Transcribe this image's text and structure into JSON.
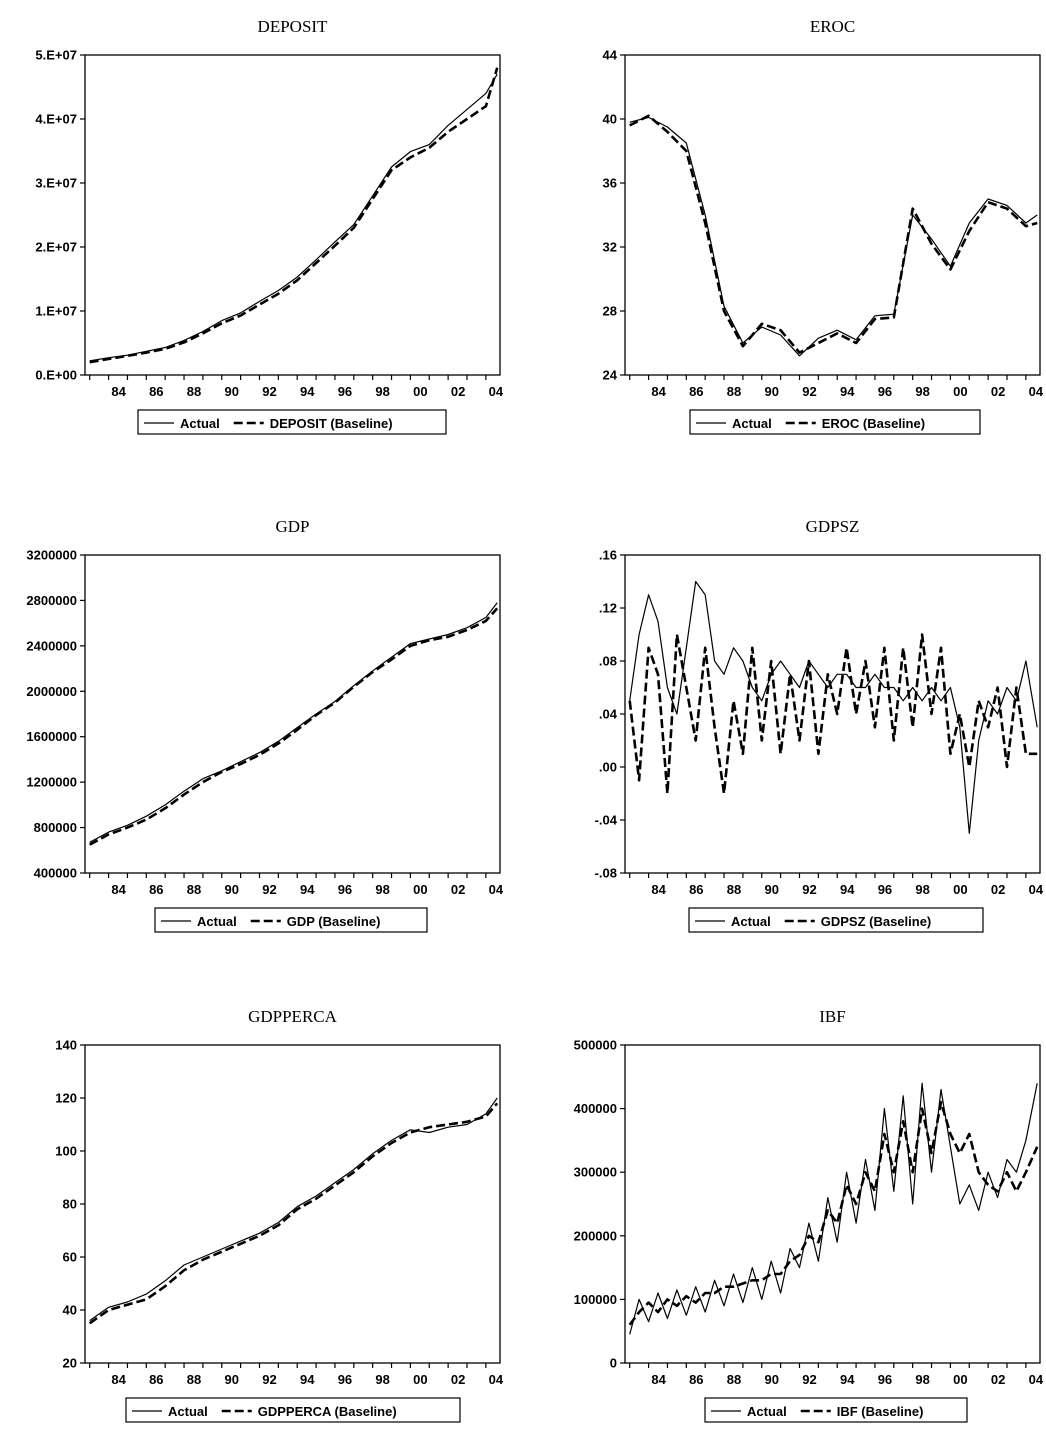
{
  "chart_data": [
    {
      "type": "line",
      "title": "DEPOSIT",
      "x_ticks": [
        "84",
        "86",
        "88",
        "90",
        "92",
        "94",
        "96",
        "98",
        "00",
        "02",
        "04"
      ],
      "x_range": [
        1982.75,
        2004.75
      ],
      "ylim": [
        0,
        50000000
      ],
      "y_ticks": [
        {
          "v": 0,
          "label": "0.E+00"
        },
        {
          "v": 10000000,
          "label": "1.E+07"
        },
        {
          "v": 20000000,
          "label": "2.E+07"
        },
        {
          "v": 30000000,
          "label": "3.E+07"
        },
        {
          "v": 40000000,
          "label": "4.E+07"
        },
        {
          "v": 50000000,
          "label": "5.E+07"
        }
      ],
      "x": [
        1983,
        1984,
        1985,
        1986,
        1987,
        1988,
        1989,
        1990,
        1991,
        1992,
        1993,
        1994,
        1995,
        1996,
        1997,
        1998,
        1999,
        2000,
        2001,
        2002,
        2003,
        2004,
        2004.6
      ],
      "series": [
        {
          "name": "Actual",
          "style": "solid",
          "values": [
            2200000,
            2700000,
            3100000,
            3700000,
            4300000,
            5400000,
            6800000,
            8500000,
            9700000,
            11500000,
            13200000,
            15300000,
            18000000,
            20800000,
            23500000,
            28000000,
            32500000,
            34900000,
            36000000,
            39000000,
            41500000,
            44000000,
            47000000
          ]
        },
        {
          "name": "DEPOSIT (Baseline)",
          "style": "dash",
          "values": [
            2000000,
            2500000,
            3000000,
            3500000,
            4100000,
            5100000,
            6500000,
            8100000,
            9300000,
            11000000,
            12700000,
            14800000,
            17500000,
            20200000,
            23000000,
            27500000,
            32000000,
            34000000,
            35500000,
            38000000,
            40000000,
            42000000,
            48000000
          ]
        }
      ],
      "legend": [
        "Actual",
        "DEPOSIT (Baseline)"
      ]
    },
    {
      "type": "line",
      "title": "EROC",
      "x_ticks": [
        "84",
        "86",
        "88",
        "90",
        "92",
        "94",
        "96",
        "98",
        "00",
        "02",
        "04"
      ],
      "x_range": [
        1982.75,
        2004.75
      ],
      "ylim": [
        24,
        44
      ],
      "y_ticks": [
        {
          "v": 24,
          "label": "24"
        },
        {
          "v": 28,
          "label": "28"
        },
        {
          "v": 32,
          "label": "32"
        },
        {
          "v": 36,
          "label": "36"
        },
        {
          "v": 40,
          "label": "40"
        },
        {
          "v": 44,
          "label": "44"
        }
      ],
      "x": [
        1983,
        1984,
        1985,
        1986,
        1987,
        1988,
        1989,
        1990,
        1991,
        1992,
        1993,
        1994,
        1995,
        1996,
        1997,
        1998,
        1999,
        2000,
        2001,
        2002,
        2003,
        2004,
        2004.6
      ],
      "series": [
        {
          "name": "Actual",
          "style": "solid",
          "values": [
            39.8,
            40.1,
            39.5,
            38.5,
            34.0,
            28.3,
            26.0,
            27.0,
            26.5,
            25.2,
            26.3,
            26.8,
            26.2,
            27.7,
            27.8,
            34.0,
            32.5,
            30.8,
            33.5,
            35.0,
            34.6,
            33.5,
            34.0
          ]
        },
        {
          "name": "EROC (Baseline)",
          "style": "dash",
          "values": [
            39.6,
            40.2,
            39.2,
            38.0,
            33.5,
            28.0,
            25.8,
            27.2,
            26.8,
            25.4,
            26.0,
            26.6,
            26.0,
            27.5,
            27.6,
            34.4,
            32.2,
            30.6,
            33.0,
            34.8,
            34.4,
            33.3,
            33.5
          ]
        }
      ],
      "legend": [
        "Actual",
        "EROC (Baseline)"
      ]
    },
    {
      "type": "line",
      "title": "GDP",
      "x_ticks": [
        "84",
        "86",
        "88",
        "90",
        "92",
        "94",
        "96",
        "98",
        "00",
        "02",
        "04"
      ],
      "x_range": [
        1982.75,
        2004.75
      ],
      "ylim": [
        400000,
        3200000
      ],
      "y_ticks": [
        {
          "v": 400000,
          "label": "400000"
        },
        {
          "v": 800000,
          "label": "800000"
        },
        {
          "v": 1200000,
          "label": "1200000"
        },
        {
          "v": 1600000,
          "label": "1600000"
        },
        {
          "v": 2000000,
          "label": "2000000"
        },
        {
          "v": 2400000,
          "label": "2400000"
        },
        {
          "v": 2800000,
          "label": "2800000"
        },
        {
          "v": 3200000,
          "label": "3200000"
        }
      ],
      "x": [
        1983,
        1984,
        1985,
        1986,
        1987,
        1988,
        1989,
        1990,
        1991,
        1992,
        1993,
        1994,
        1995,
        1996,
        1997,
        1998,
        1999,
        2000,
        2001,
        2002,
        2003,
        2004,
        2004.6
      ],
      "series": [
        {
          "name": "Actual",
          "style": "solid",
          "values": [
            670000,
            760000,
            820000,
            900000,
            1000000,
            1120000,
            1230000,
            1300000,
            1380000,
            1460000,
            1560000,
            1680000,
            1800000,
            1910000,
            2050000,
            2180000,
            2300000,
            2420000,
            2460000,
            2500000,
            2560000,
            2650000,
            2780000
          ]
        },
        {
          "name": "GDP (Baseline)",
          "style": "dash",
          "values": [
            650000,
            740000,
            800000,
            870000,
            970000,
            1090000,
            1200000,
            1290000,
            1360000,
            1440000,
            1540000,
            1660000,
            1790000,
            1900000,
            2040000,
            2170000,
            2280000,
            2400000,
            2450000,
            2480000,
            2540000,
            2620000,
            2730000
          ]
        }
      ],
      "legend": [
        "Actual",
        "GDP (Baseline)"
      ]
    },
    {
      "type": "line",
      "title": "GDPSZ",
      "x_ticks": [
        "84",
        "86",
        "88",
        "90",
        "92",
        "94",
        "96",
        "98",
        "00",
        "02",
        "04"
      ],
      "x_range": [
        1982.75,
        2004.75
      ],
      "ylim": [
        -0.08,
        0.16
      ],
      "y_ticks": [
        {
          "v": -0.08,
          "label": "-.08"
        },
        {
          "v": -0.04,
          "label": "-.04"
        },
        {
          "v": 0,
          "label": ".00"
        },
        {
          "v": 0.04,
          "label": ".04"
        },
        {
          "v": 0.08,
          "label": ".08"
        },
        {
          "v": 0.12,
          "label": ".12"
        },
        {
          "v": 0.16,
          "label": ".16"
        }
      ],
      "x": [
        1983,
        1983.5,
        1984,
        1984.5,
        1985,
        1985.5,
        1986,
        1986.5,
        1987,
        1987.5,
        1988,
        1988.5,
        1989,
        1989.5,
        1990,
        1990.5,
        1991,
        1991.5,
        1992,
        1992.5,
        1993,
        1993.5,
        1994,
        1994.5,
        1995,
        1995.5,
        1996,
        1996.5,
        1997,
        1997.5,
        1998,
        1998.5,
        1999,
        1999.5,
        2000,
        2000.5,
        2001,
        2001.5,
        2002,
        2002.5,
        2003,
        2003.5,
        2004,
        2004.6
      ],
      "series": [
        {
          "name": "Actual",
          "style": "solid",
          "values": [
            0.05,
            0.1,
            0.13,
            0.11,
            0.06,
            0.04,
            0.09,
            0.14,
            0.13,
            0.08,
            0.07,
            0.09,
            0.08,
            0.06,
            0.05,
            0.07,
            0.08,
            0.07,
            0.06,
            0.08,
            0.07,
            0.06,
            0.07,
            0.07,
            0.06,
            0.06,
            0.07,
            0.06,
            0.06,
            0.05,
            0.06,
            0.05,
            0.06,
            0.05,
            0.06,
            0.03,
            -0.05,
            0.02,
            0.05,
            0.04,
            0.06,
            0.05,
            0.08,
            0.03
          ]
        },
        {
          "name": "GDPSZ (Baseline)",
          "style": "dash",
          "values": [
            0.05,
            -0.01,
            0.09,
            0.07,
            -0.02,
            0.1,
            0.06,
            0.02,
            0.09,
            0.03,
            -0.02,
            0.05,
            0.01,
            0.09,
            0.02,
            0.08,
            0.01,
            0.07,
            0.02,
            0.08,
            0.01,
            0.07,
            0.04,
            0.09,
            0.04,
            0.08,
            0.03,
            0.09,
            0.02,
            0.09,
            0.03,
            0.1,
            0.04,
            0.09,
            0.01,
            0.04,
            0.0,
            0.05,
            0.03,
            0.06,
            0.0,
            0.06,
            0.01,
            0.01
          ]
        }
      ],
      "legend": [
        "Actual",
        "GDPSZ (Baseline)"
      ]
    },
    {
      "type": "line",
      "title": "GDPPERCA",
      "x_ticks": [
        "84",
        "86",
        "88",
        "90",
        "92",
        "94",
        "96",
        "98",
        "00",
        "02",
        "04"
      ],
      "x_range": [
        1982.75,
        2004.75
      ],
      "ylim": [
        20,
        140
      ],
      "y_ticks": [
        {
          "v": 20,
          "label": "20"
        },
        {
          "v": 40,
          "label": "40"
        },
        {
          "v": 60,
          "label": "60"
        },
        {
          "v": 80,
          "label": "80"
        },
        {
          "v": 100,
          "label": "100"
        },
        {
          "v": 120,
          "label": "120"
        },
        {
          "v": 140,
          "label": "140"
        }
      ],
      "x": [
        1983,
        1984,
        1985,
        1986,
        1987,
        1988,
        1989,
        1990,
        1991,
        1992,
        1993,
        1994,
        1995,
        1996,
        1997,
        1998,
        1999,
        2000,
        2001,
        2002,
        2003,
        2004,
        2004.6
      ],
      "series": [
        {
          "name": "Actual",
          "style": "solid",
          "values": [
            36,
            41,
            43,
            46,
            51,
            57,
            60,
            63,
            66,
            69,
            73,
            79,
            83,
            88,
            93,
            99,
            104,
            108,
            107,
            109,
            110,
            114,
            120
          ]
        },
        {
          "name": "GDPPERCA (Baseline)",
          "style": "dash",
          "values": [
            35,
            40,
            42,
            44,
            49,
            55,
            59,
            62,
            65,
            68,
            72,
            78,
            82,
            87,
            92,
            98,
            103,
            107,
            109,
            110,
            111,
            113,
            118
          ]
        }
      ],
      "legend": [
        "Actual",
        "GDPPERCA (Baseline)"
      ]
    },
    {
      "type": "line",
      "title": "IBF",
      "x_ticks": [
        "84",
        "86",
        "88",
        "90",
        "92",
        "94",
        "96",
        "98",
        "00",
        "02",
        "04"
      ],
      "x_range": [
        1982.75,
        2004.75
      ],
      "ylim": [
        0,
        500000
      ],
      "y_ticks": [
        {
          "v": 0,
          "label": "0"
        },
        {
          "v": 100000,
          "label": "100000"
        },
        {
          "v": 200000,
          "label": "200000"
        },
        {
          "v": 300000,
          "label": "300000"
        },
        {
          "v": 400000,
          "label": "400000"
        },
        {
          "v": 500000,
          "label": "500000"
        }
      ],
      "x": [
        1983,
        1983.5,
        1984,
        1984.5,
        1985,
        1985.5,
        1986,
        1986.5,
        1987,
        1987.5,
        1988,
        1988.5,
        1989,
        1989.5,
        1990,
        1990.5,
        1991,
        1991.5,
        1992,
        1992.5,
        1993,
        1993.5,
        1994,
        1994.5,
        1995,
        1995.5,
        1996,
        1996.5,
        1997,
        1997.5,
        1998,
        1998.5,
        1999,
        1999.5,
        2000,
        2000.5,
        2001,
        2001.5,
        2002,
        2002.5,
        2003,
        2003.5,
        2004,
        2004.6
      ],
      "series": [
        {
          "name": "Actual",
          "style": "solid",
          "values": [
            45000,
            100000,
            65000,
            110000,
            70000,
            115000,
            75000,
            120000,
            80000,
            130000,
            90000,
            140000,
            95000,
            150000,
            100000,
            160000,
            110000,
            180000,
            150000,
            220000,
            160000,
            260000,
            190000,
            300000,
            220000,
            320000,
            240000,
            400000,
            270000,
            420000,
            250000,
            440000,
            300000,
            430000,
            340000,
            250000,
            280000,
            240000,
            300000,
            260000,
            320000,
            300000,
            350000,
            440000
          ]
        },
        {
          "name": "IBF (Baseline)",
          "style": "dash",
          "values": [
            60000,
            80000,
            95000,
            80000,
            100000,
            90000,
            105000,
            95000,
            110000,
            110000,
            120000,
            120000,
            125000,
            130000,
            130000,
            140000,
            140000,
            160000,
            170000,
            200000,
            190000,
            240000,
            220000,
            280000,
            250000,
            300000,
            270000,
            360000,
            300000,
            380000,
            300000,
            400000,
            330000,
            410000,
            360000,
            330000,
            360000,
            300000,
            280000,
            270000,
            300000,
            270000,
            300000,
            340000
          ]
        }
      ],
      "legend": [
        "Actual",
        "IBF (Baseline)"
      ]
    }
  ]
}
